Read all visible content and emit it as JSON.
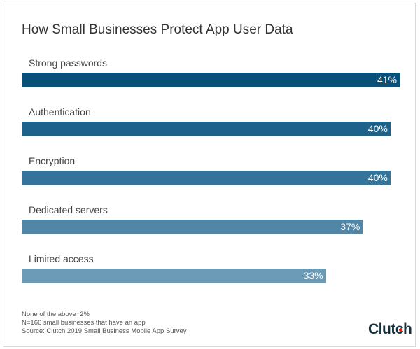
{
  "chart_data": {
    "type": "bar",
    "orientation": "horizontal",
    "title": "How Small Businesses Protect App User Data",
    "categories": [
      "Strong passwords",
      "Authentication",
      "Encryption",
      "Dedicated servers",
      "Limited access"
    ],
    "values": [
      41,
      40,
      40,
      37,
      33
    ],
    "value_labels": [
      "41%",
      "40%",
      "40%",
      "37%",
      "33%"
    ],
    "colors": [
      "#06507a",
      "#1d628a",
      "#35749a",
      "#5186a6",
      "#6b9bb7"
    ],
    "xlim": [
      0,
      41
    ],
    "grid": false,
    "legend": "none"
  },
  "notes": [
    "None of the above=2%",
    "N=166 small businesses that have an app",
    "Source: Clutch 2019 Small Business Mobile App Survey"
  ],
  "logo": "Clutch"
}
